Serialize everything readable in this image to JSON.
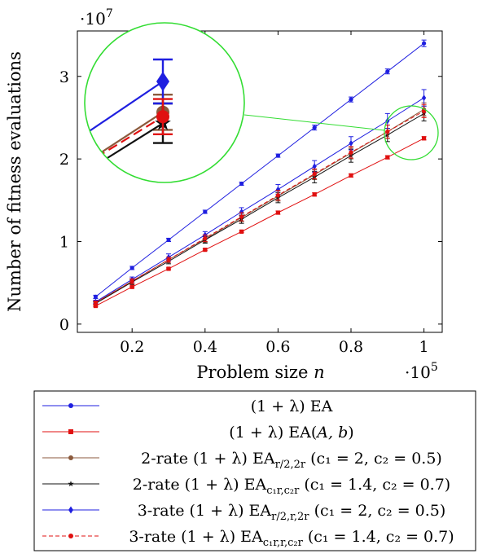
{
  "chart_data": {
    "type": "line",
    "xlabel": "Problem size n",
    "ylabel": "Number of fitness evaluations",
    "x_multiplier": "·10^5",
    "y_multiplier": "·10^7",
    "x": [
      0.1,
      0.2,
      0.3,
      0.4,
      0.5,
      0.6,
      0.7,
      0.8,
      0.9,
      1.0
    ],
    "xlim": [
      0.05,
      1.05
    ],
    "ylim": [
      -0.1,
      3.55
    ],
    "xticks": [
      0.2,
      0.4,
      0.6,
      0.8,
      1
    ],
    "yticks": [
      0,
      1,
      2,
      3
    ],
    "grid": false,
    "legend_position": "below",
    "inset": "zoomed view of the region around n = 1 (·10^5)",
    "series": [
      {
        "name": "(1 + λ) EA",
        "color": "#1f1fe0",
        "marker": "circle",
        "dash": "solid",
        "values": [
          0.33,
          0.68,
          1.02,
          1.36,
          1.7,
          2.04,
          2.38,
          2.72,
          3.06,
          3.4
        ],
        "errors": [
          0.02,
          0.02,
          0.02,
          0.02,
          0.02,
          0.02,
          0.03,
          0.03,
          0.03,
          0.04
        ]
      },
      {
        "name": "(1 + λ) EA(A, b)",
        "color": "#e01010",
        "marker": "square",
        "dash": "solid",
        "values": [
          0.22,
          0.45,
          0.67,
          0.9,
          1.12,
          1.35,
          1.57,
          1.8,
          2.02,
          2.25
        ],
        "errors": [
          0.01,
          0.01,
          0.01,
          0.01,
          0.01,
          0.02,
          0.02,
          0.02,
          0.02,
          0.02
        ]
      },
      {
        "name": "2-rate (1 + λ) EA_{r/2,2r} (c1 = 2, c2 = 0.5)",
        "color": "#8b5a3c",
        "marker": "circle",
        "dash": "solid",
        "values": [
          0.26,
          0.52,
          0.78,
          1.03,
          1.29,
          1.55,
          1.81,
          2.07,
          2.33,
          2.6
        ],
        "errors": [
          0.02,
          0.03,
          0.03,
          0.04,
          0.05,
          0.06,
          0.06,
          0.07,
          0.08,
          0.08
        ]
      },
      {
        "name": "2-rate (1 + λ) EA_{c1r,c2r} (c1 = 1.4, c2 = 0.7)",
        "color": "#111111",
        "marker": "star",
        "dash": "solid",
        "values": [
          0.25,
          0.51,
          0.76,
          1.02,
          1.27,
          1.53,
          1.78,
          2.04,
          2.29,
          2.55
        ],
        "errors": [
          0.02,
          0.03,
          0.03,
          0.04,
          0.05,
          0.06,
          0.07,
          0.08,
          0.08,
          0.09
        ]
      },
      {
        "name": "3-rate (1 + λ) EA_{r/2,r,2r} (c1 = 2, c2 = 0.5)",
        "color": "#1f1fe0",
        "marker": "diamond",
        "dash": "solid",
        "values": [
          0.27,
          0.54,
          0.81,
          1.08,
          1.36,
          1.63,
          1.91,
          2.19,
          2.46,
          2.74
        ],
        "errors": [
          0.02,
          0.03,
          0.04,
          0.04,
          0.05,
          0.06,
          0.07,
          0.08,
          0.09,
          0.1
        ]
      },
      {
        "name": "3-rate (1 + λ) EA_{c1r,r,c2r} (c1 = 1.4, c2 = 0.7)",
        "color": "#e01010",
        "marker": "circle",
        "dash": "dashed",
        "values": [
          0.26,
          0.52,
          0.78,
          1.04,
          1.3,
          1.56,
          1.82,
          2.08,
          2.33,
          2.58
        ],
        "errors": [
          0.02,
          0.03,
          0.03,
          0.04,
          0.05,
          0.06,
          0.06,
          0.07,
          0.08,
          0.08
        ]
      }
    ],
    "legend": [
      {
        "pre": "(1 + λ) EA"
      },
      {
        "pre": "(1 + λ) EA(",
        "italic": "A, b",
        "post": ")"
      },
      {
        "pre": "2-rate (1 + λ) EA",
        "sub": "r/2,2r",
        "post": " (c₁ = 2, c₂ = 0.5)"
      },
      {
        "pre": "2-rate (1 + λ) EA",
        "sub": "c₁r,c₂r",
        "post": " (c₁ = 1.4, c₂ = 0.7)"
      },
      {
        "pre": "3-rate (1 + λ) EA",
        "sub": "r/2,r,2r",
        "post": " (c₁ = 2, c₂ = 0.5)"
      },
      {
        "pre": "3-rate (1 + λ) EA",
        "sub": "c₁r,r,c₂r",
        "post": " (c₁ = 1.4, c₂ = 0.7)"
      }
    ]
  }
}
